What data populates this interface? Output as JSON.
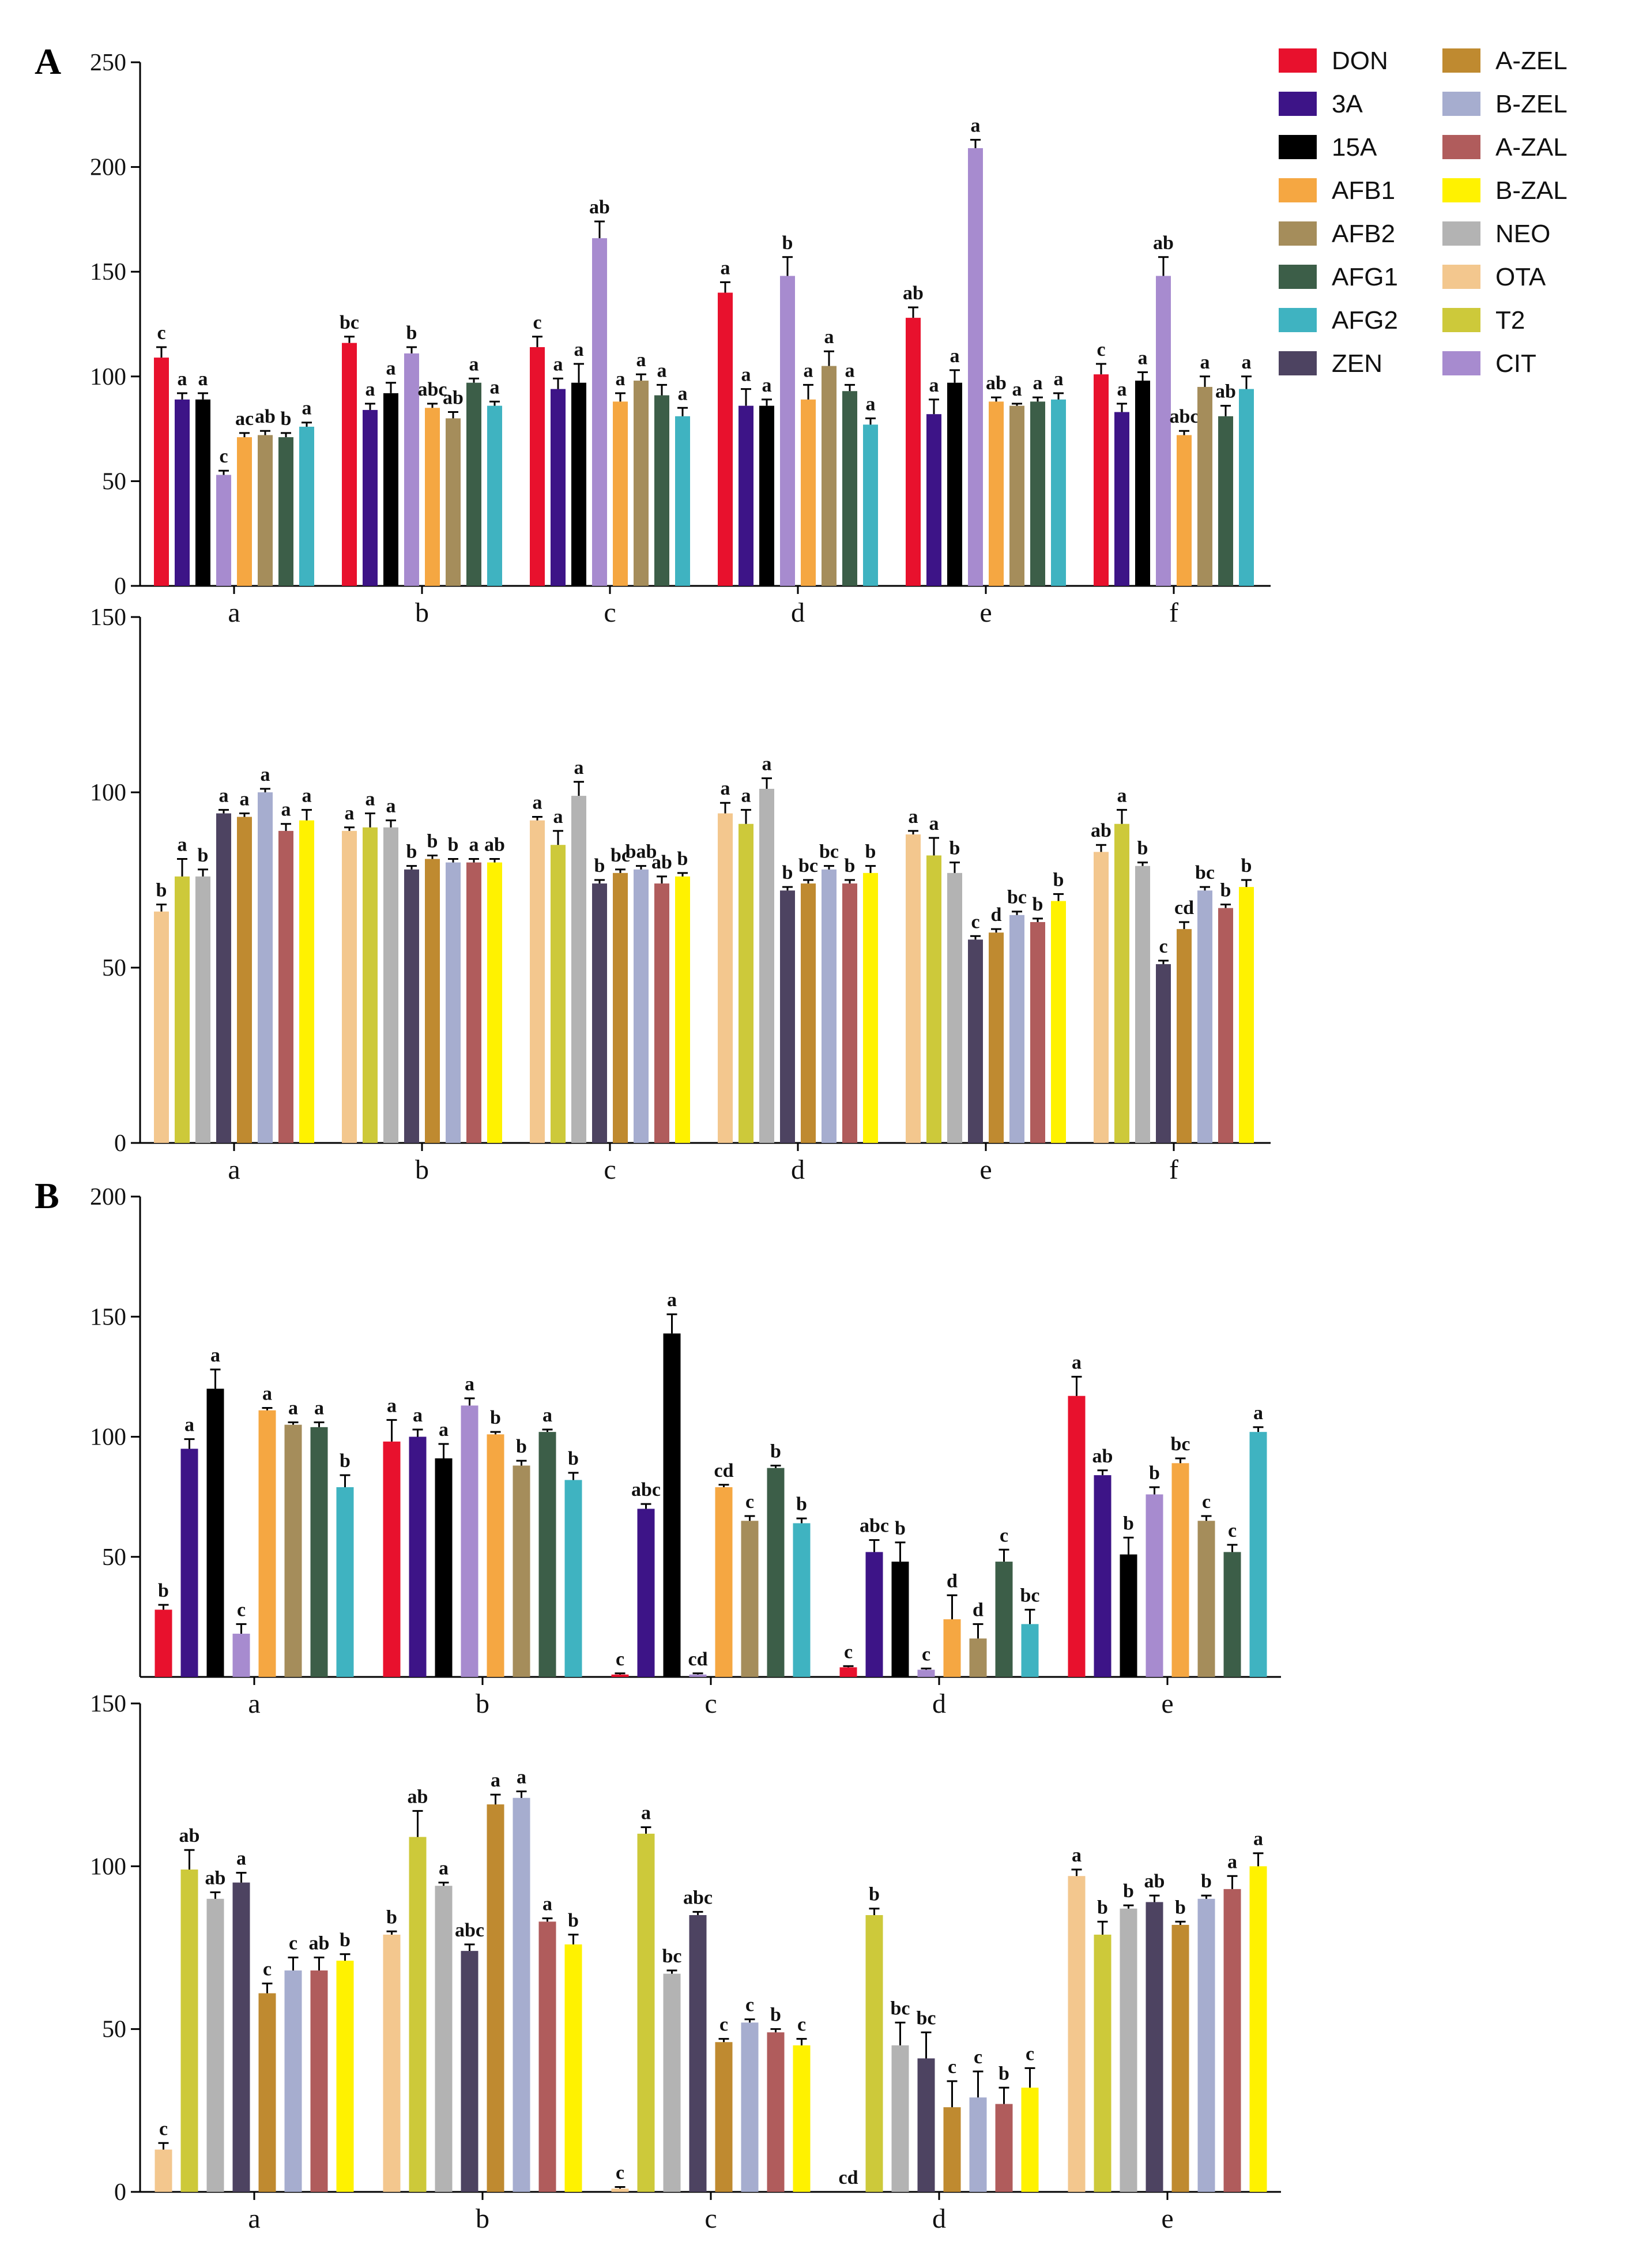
{
  "panel_labels": [
    "A",
    "B"
  ],
  "legend": [
    {
      "name": "DON",
      "color": "#e8112d"
    },
    {
      "name": "3A",
      "color": "#3d1487"
    },
    {
      "name": "15A",
      "color": "#000000"
    },
    {
      "name": "AFB1",
      "color": "#f5a742"
    },
    {
      "name": "AFB2",
      "color": "#a58d5b"
    },
    {
      "name": "AFG1",
      "color": "#3c5e48"
    },
    {
      "name": "AFG2",
      "color": "#3fb3c1"
    },
    {
      "name": "ZEN",
      "color": "#4d4361"
    },
    {
      "name": "A-ZEL",
      "color": "#bf8a30"
    },
    {
      "name": "B-ZEL",
      "color": "#a6adcf"
    },
    {
      "name": "A-ZAL",
      "color": "#b05c5c"
    },
    {
      "name": "B-ZAL",
      "color": "#fff200"
    },
    {
      "name": "NEO",
      "color": "#b3b3b3"
    },
    {
      "name": "OTA",
      "color": "#f3c78e"
    },
    {
      "name": "T2",
      "color": "#cdc93a"
    },
    {
      "name": "CIT",
      "color": "#a78bcf"
    }
  ],
  "chart_data": [
    {
      "id": "A-top",
      "type": "bar",
      "panel": "A",
      "categories": [
        "a",
        "b",
        "c",
        "d",
        "e",
        "f"
      ],
      "ylim": [
        0,
        250
      ],
      "yticks": [
        0,
        50,
        100,
        150,
        200,
        250
      ],
      "series": [
        {
          "name": "DON",
          "values": [
            109,
            116,
            114,
            140,
            128,
            101
          ],
          "errors": [
            5,
            3,
            5,
            5,
            5,
            5
          ],
          "labels": [
            "c",
            "bc",
            "c",
            "a",
            "ab",
            "c"
          ]
        },
        {
          "name": "3A",
          "values": [
            89,
            84,
            94,
            86,
            82,
            83
          ],
          "errors": [
            3,
            3,
            5,
            8,
            7,
            4
          ],
          "labels": [
            "a",
            "a",
            "a",
            "a",
            "a",
            "a"
          ]
        },
        {
          "name": "15A",
          "values": [
            89,
            92,
            97,
            86,
            97,
            98
          ],
          "errors": [
            3,
            5,
            9,
            3,
            6,
            4
          ],
          "labels": [
            "a",
            "a",
            "a",
            "a",
            "a",
            "a"
          ]
        },
        {
          "name": "CIT",
          "values": [
            53,
            111,
            166,
            148,
            209,
            148
          ],
          "errors": [
            2,
            3,
            8,
            9,
            4,
            9
          ],
          "labels": [
            "c",
            "b",
            "ab",
            "b",
            "a",
            "ab"
          ]
        },
        {
          "name": "AFB1",
          "values": [
            71,
            85,
            88,
            89,
            88,
            72
          ],
          "errors": [
            2,
            2,
            4,
            7,
            2,
            2
          ],
          "labels": [
            "ac",
            "abc",
            "a",
            "a",
            "ab",
            "abc"
          ]
        },
        {
          "name": "AFB2",
          "values": [
            72,
            80,
            98,
            105,
            86,
            95
          ],
          "errors": [
            2,
            3,
            3,
            7,
            1,
            5
          ],
          "labels": [
            "ab",
            "ab",
            "a",
            "a",
            "a",
            "a"
          ]
        },
        {
          "name": "AFG1",
          "values": [
            71,
            97,
            91,
            93,
            88,
            81
          ],
          "errors": [
            2,
            2,
            5,
            3,
            2,
            5
          ],
          "labels": [
            "b",
            "a",
            "a",
            "a",
            "a",
            "ab"
          ]
        },
        {
          "name": "AFG2",
          "values": [
            76,
            86,
            81,
            77,
            89,
            94
          ],
          "errors": [
            2,
            2,
            4,
            3,
            3,
            6
          ],
          "labels": [
            "a",
            "a",
            "a",
            "a",
            "a",
            "a"
          ]
        }
      ]
    },
    {
      "id": "A-bottom",
      "type": "bar",
      "panel": "A",
      "categories": [
        "a",
        "b",
        "c",
        "d",
        "e",
        "f"
      ],
      "ylim": [
        0,
        150
      ],
      "yticks": [
        0,
        50,
        100,
        150
      ],
      "series": [
        {
          "name": "OTA",
          "values": [
            66,
            89,
            92,
            94,
            88,
            83
          ],
          "errors": [
            2,
            1,
            1,
            3,
            1,
            2
          ],
          "labels": [
            "b",
            "a",
            "a",
            "a",
            "a",
            "ab"
          ]
        },
        {
          "name": "T2",
          "values": [
            76,
            90,
            85,
            91,
            82,
            91
          ],
          "errors": [
            5,
            4,
            4,
            4,
            5,
            4
          ],
          "labels": [
            "a",
            "a",
            "a",
            "a",
            "a",
            "a"
          ]
        },
        {
          "name": "NEO",
          "values": [
            76,
            90,
            99,
            101,
            77,
            79
          ],
          "errors": [
            2,
            2,
            4,
            3,
            3,
            1
          ],
          "labels": [
            "b",
            "a",
            "a",
            "a",
            "b",
            "b"
          ]
        },
        {
          "name": "ZEN",
          "values": [
            94,
            78,
            74,
            72,
            58,
            51
          ],
          "errors": [
            1,
            1,
            1,
            1,
            1,
            1
          ],
          "labels": [
            "a",
            "b",
            "b",
            "b",
            "c",
            "c"
          ]
        },
        {
          "name": "A-ZEL",
          "values": [
            93,
            81,
            77,
            74,
            60,
            61
          ],
          "errors": [
            1,
            1,
            1,
            1,
            1,
            2
          ],
          "labels": [
            "a",
            "b",
            "bc",
            "bc",
            "d",
            "cd"
          ]
        },
        {
          "name": "B-ZEL",
          "values": [
            100,
            80,
            78,
            78,
            65,
            72
          ],
          "errors": [
            1,
            1,
            1,
            1,
            1,
            1
          ],
          "labels": [
            "a",
            "b",
            "bab",
            "bc",
            "bc",
            "bc"
          ]
        },
        {
          "name": "A-ZAL",
          "values": [
            89,
            80,
            74,
            74,
            63,
            67
          ],
          "errors": [
            2,
            1,
            2,
            1,
            1,
            1
          ],
          "labels": [
            "a",
            "a",
            "ab",
            "b",
            "b",
            "b"
          ]
        },
        {
          "name": "B-ZAL",
          "values": [
            92,
            80,
            76,
            77,
            69,
            73
          ],
          "errors": [
            3,
            1,
            1,
            2,
            2,
            2
          ],
          "labels": [
            "a",
            "ab",
            "b",
            "b",
            "b",
            "b"
          ]
        }
      ]
    },
    {
      "id": "B-top",
      "type": "bar",
      "panel": "B",
      "categories": [
        "a",
        "b",
        "c",
        "d",
        "e"
      ],
      "ylim": [
        0,
        200
      ],
      "yticks": [
        50,
        100,
        150,
        200
      ],
      "series": [
        {
          "name": "DON",
          "values": [
            28,
            98,
            1,
            4,
            117
          ],
          "errors": [
            2,
            9,
            0.5,
            0.5,
            8
          ],
          "labels": [
            "b",
            "a",
            "c",
            "c",
            "a"
          ]
        },
        {
          "name": "3A",
          "values": [
            95,
            100,
            70,
            52,
            84
          ],
          "errors": [
            4,
            3,
            2,
            5,
            2
          ],
          "labels": [
            "a",
            "a",
            "abc",
            "abc",
            "ab"
          ]
        },
        {
          "name": "15A",
          "values": [
            120,
            91,
            143,
            48,
            51
          ],
          "errors": [
            8,
            6,
            8,
            8,
            7
          ],
          "labels": [
            "a",
            "a",
            "a",
            "b",
            "b"
          ]
        },
        {
          "name": "CIT",
          "values": [
            18,
            113,
            1,
            3,
            76
          ],
          "errors": [
            4,
            3,
            0.5,
            0.5,
            3
          ],
          "labels": [
            "c",
            "a",
            "cd",
            "c",
            "b"
          ]
        },
        {
          "name": "AFB1",
          "values": [
            111,
            101,
            79,
            24,
            89
          ],
          "errors": [
            1,
            1,
            1,
            10,
            2
          ],
          "labels": [
            "a",
            "b",
            "cd",
            "d",
            "bc"
          ]
        },
        {
          "name": "AFB2",
          "values": [
            105,
            88,
            65,
            16,
            65
          ],
          "errors": [
            1,
            2,
            2,
            6,
            2
          ],
          "labels": [
            "a",
            "b",
            "c",
            "d",
            "c"
          ]
        },
        {
          "name": "AFG1",
          "values": [
            104,
            102,
            87,
            48,
            52
          ],
          "errors": [
            2,
            1,
            1,
            5,
            3
          ],
          "labels": [
            "a",
            "a",
            "b",
            "c",
            "c"
          ]
        },
        {
          "name": "AFG2",
          "values": [
            79,
            82,
            64,
            22,
            102
          ],
          "errors": [
            5,
            3,
            2,
            6,
            2
          ],
          "labels": [
            "b",
            "b",
            "b",
            "bc",
            "a"
          ]
        }
      ]
    },
    {
      "id": "B-bottom",
      "type": "bar",
      "panel": "B",
      "categories": [
        "a",
        "b",
        "c",
        "d",
        "e"
      ],
      "ylim": [
        0,
        150
      ],
      "yticks": [
        0,
        50,
        100,
        150
      ],
      "series": [
        {
          "name": "OTA",
          "values": [
            13,
            79,
            1,
            0,
            97
          ],
          "errors": [
            2,
            1,
            0.5,
            0,
            2
          ],
          "labels": [
            "c",
            "b",
            "c",
            "cd",
            "a"
          ]
        },
        {
          "name": "T2",
          "values": [
            99,
            109,
            110,
            85,
            79
          ],
          "errors": [
            6,
            8,
            2,
            2,
            4
          ],
          "labels": [
            "ab",
            "ab",
            "a",
            "b",
            "b"
          ]
        },
        {
          "name": "NEO",
          "values": [
            90,
            94,
            67,
            45,
            87
          ],
          "errors": [
            2,
            1,
            1,
            7,
            1
          ],
          "labels": [
            "ab",
            "a",
            "bc",
            "bc",
            "b"
          ]
        },
        {
          "name": "ZEN",
          "values": [
            95,
            74,
            85,
            41,
            89
          ],
          "errors": [
            3,
            2,
            1,
            8,
            2
          ],
          "labels": [
            "a",
            "abc",
            "abc",
            "bc",
            "ab"
          ]
        },
        {
          "name": "A-ZEL",
          "values": [
            61,
            119,
            46,
            26,
            82
          ],
          "errors": [
            3,
            3,
            1,
            8,
            1
          ],
          "labels": [
            "c",
            "a",
            "c",
            "c",
            "b"
          ]
        },
        {
          "name": "B-ZEL",
          "values": [
            68,
            121,
            52,
            29,
            90
          ],
          "errors": [
            4,
            2,
            1,
            8,
            1
          ],
          "labels": [
            "c",
            "a",
            "c",
            "c",
            "b"
          ]
        },
        {
          "name": "A-ZAL",
          "values": [
            68,
            83,
            49,
            27,
            93
          ],
          "errors": [
            4,
            1,
            1,
            5,
            4
          ],
          "labels": [
            "ab",
            "a",
            "b",
            "b",
            "a"
          ]
        },
        {
          "name": "B-ZAL",
          "values": [
            71,
            76,
            45,
            32,
            100
          ],
          "errors": [
            2,
            3,
            2,
            6,
            4
          ],
          "labels": [
            "b",
            "b",
            "c",
            "c",
            "a"
          ]
        }
      ]
    }
  ]
}
